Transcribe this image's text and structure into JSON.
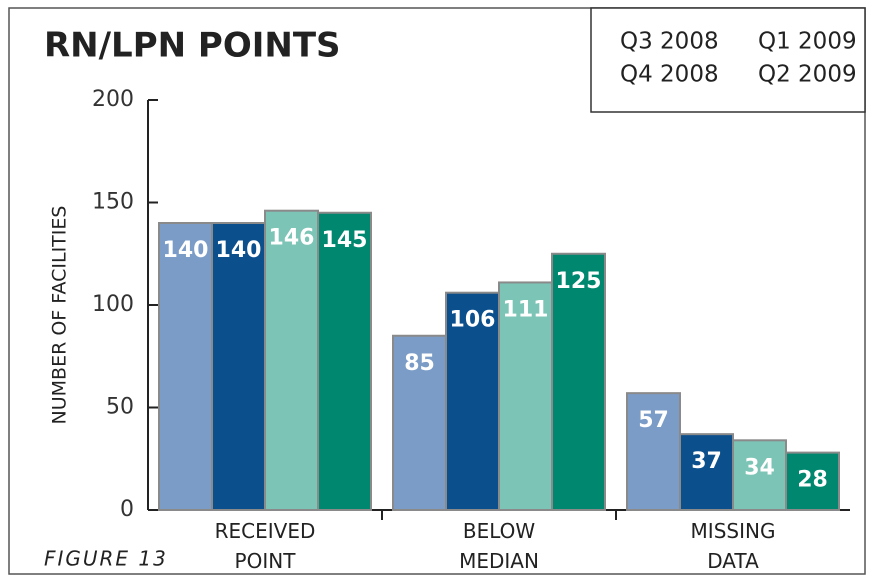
{
  "chart_data": {
    "type": "bar",
    "title": "RN/LPN POINTS",
    "figure_label": "FIGURE 13",
    "y_label": "NUMBER OF FACILITIES",
    "categories": [
      "RECEIVED POINT",
      "BELOW MEDIAN",
      "MISSING DATA"
    ],
    "series": [
      {
        "name": "Q3 2008",
        "color": "#7b9cc6",
        "values": [
          140,
          85,
          57
        ]
      },
      {
        "name": "Q4 2008",
        "color": "#0b4f8c",
        "values": [
          140,
          106,
          37
        ]
      },
      {
        "name": "Q1 2009",
        "color": "#7cc4b6",
        "values": [
          146,
          111,
          34
        ]
      },
      {
        "name": "Q2 2009",
        "color": "#00876f",
        "values": [
          145,
          125,
          28
        ]
      }
    ],
    "ylim": [
      0,
      200
    ],
    "yticks": [
      0,
      50,
      100,
      150,
      200
    ]
  }
}
